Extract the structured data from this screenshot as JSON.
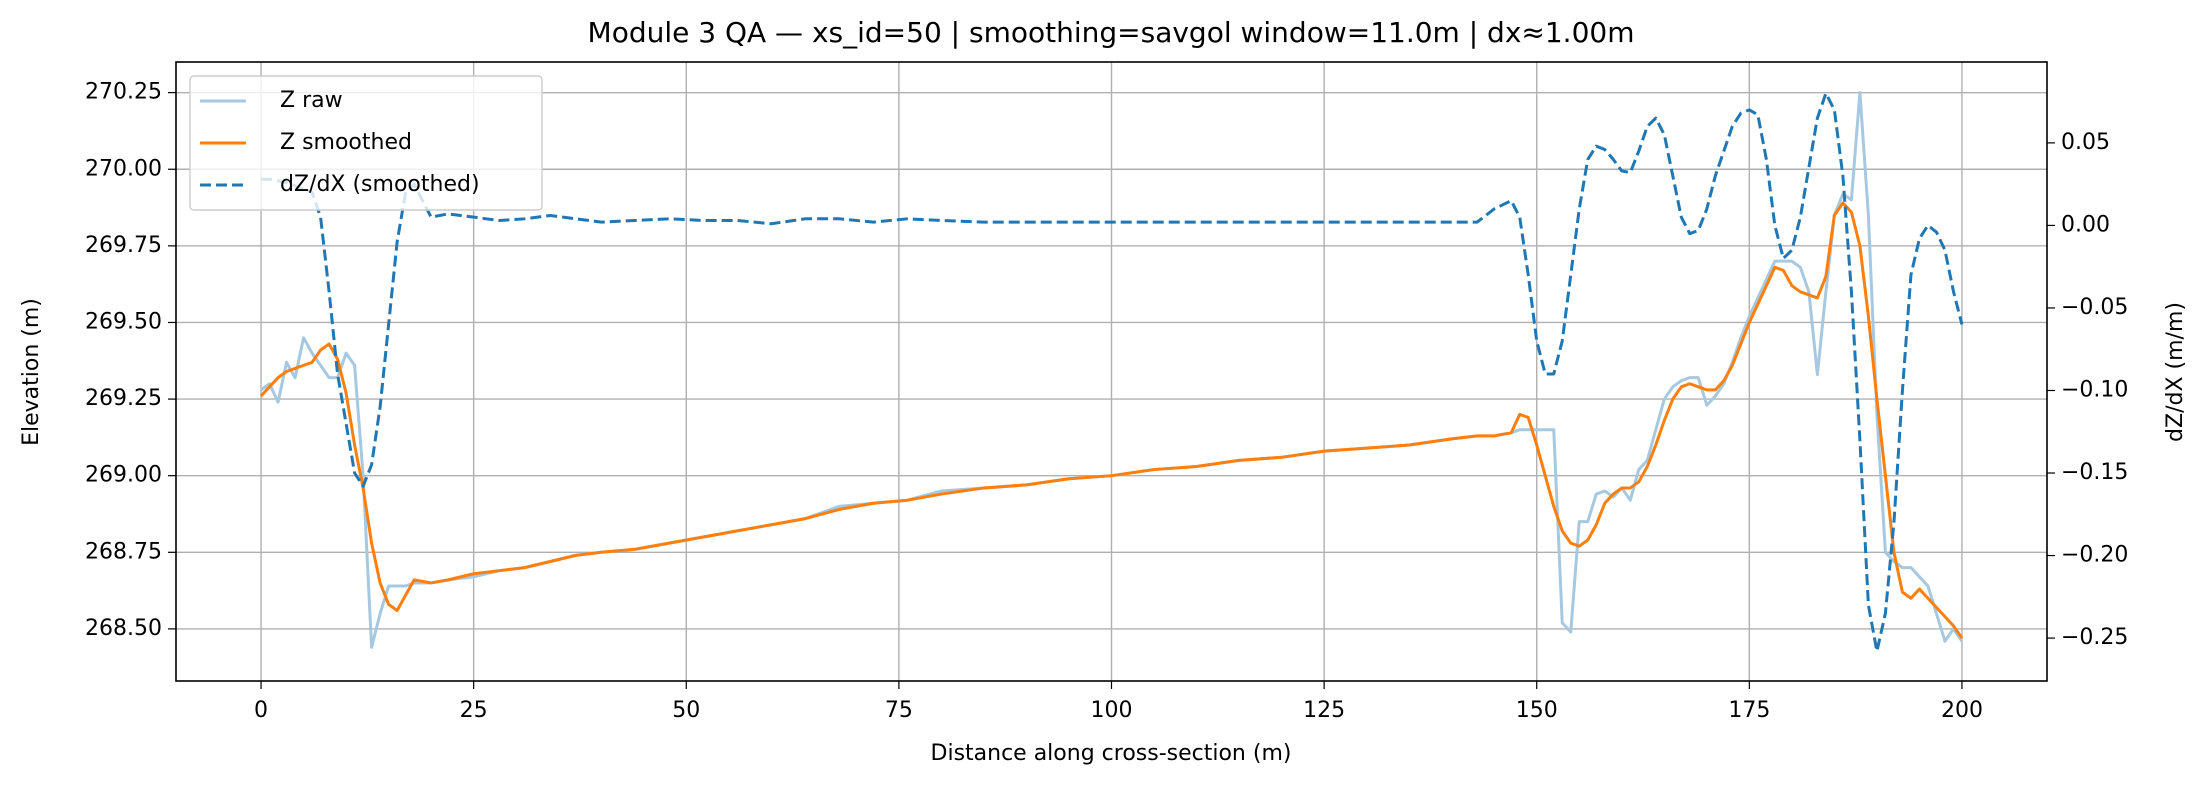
{
  "chart_data": {
    "type": "line",
    "title": "Module 3 QA — xs_id=50 | smoothing=savgol window=11.0m | dx≈1.00m",
    "x_label": "Distance along cross-section (m)",
    "y_label": "Elevation (m)",
    "y2_label": "dZ/dX (m/m)",
    "x": [
      0,
      1,
      2,
      3,
      4,
      5,
      6,
      7,
      8,
      9,
      10,
      11,
      12,
      13,
      14,
      15,
      16,
      17,
      18,
      20,
      22,
      25,
      28,
      31,
      34,
      37,
      40,
      44,
      48,
      52,
      56,
      60,
      64,
      68,
      72,
      76,
      80,
      85,
      90,
      95,
      100,
      105,
      110,
      115,
      120,
      125,
      130,
      135,
      140,
      143,
      145,
      147,
      148,
      149,
      150,
      151,
      152,
      153,
      154,
      155,
      156,
      157,
      158,
      159,
      160,
      161,
      162,
      163,
      164,
      165,
      166,
      167,
      168,
      169,
      170,
      171,
      172,
      173,
      174,
      175,
      176,
      177,
      178,
      179,
      180,
      181,
      182,
      183,
      184,
      185,
      186,
      187,
      188,
      189,
      190,
      191,
      192,
      193,
      194,
      195,
      196,
      197,
      198,
      199,
      200
    ],
    "series": [
      {
        "name": "Z raw",
        "color": "#a6c8e0",
        "axis": "y",
        "linestyle": "solid",
        "values": [
          269.28,
          269.3,
          269.24,
          269.37,
          269.32,
          269.45,
          269.4,
          269.36,
          269.32,
          269.32,
          269.4,
          269.36,
          269.0,
          268.44,
          268.55,
          268.64,
          268.64,
          268.64,
          268.65,
          268.65,
          268.66,
          268.67,
          268.69,
          268.7,
          268.72,
          268.74,
          268.75,
          268.76,
          268.78,
          268.8,
          268.82,
          268.84,
          268.86,
          268.9,
          268.91,
          268.92,
          268.95,
          268.96,
          268.97,
          268.99,
          269.0,
          269.02,
          269.03,
          269.05,
          269.06,
          269.08,
          269.09,
          269.1,
          269.12,
          269.13,
          269.13,
          269.14,
          269.15,
          269.15,
          269.15,
          269.15,
          269.15,
          268.52,
          268.49,
          268.85,
          268.85,
          268.94,
          268.95,
          268.93,
          268.96,
          268.92,
          269.02,
          269.05,
          269.15,
          269.25,
          269.29,
          269.31,
          269.32,
          269.32,
          269.23,
          269.26,
          269.3,
          269.37,
          269.45,
          269.52,
          269.58,
          269.64,
          269.7,
          269.7,
          269.7,
          269.68,
          269.6,
          269.33,
          269.6,
          269.85,
          269.92,
          269.9,
          270.25,
          269.85,
          269.2,
          268.75,
          268.72,
          268.7,
          268.7,
          268.67,
          268.64,
          268.55,
          268.46,
          268.5,
          268.46
        ]
      },
      {
        "name": "Z smoothed",
        "color": "#ff7f0e",
        "axis": "y",
        "linestyle": "solid",
        "values": [
          269.26,
          269.29,
          269.32,
          269.34,
          269.35,
          269.36,
          269.37,
          269.41,
          269.43,
          269.38,
          269.27,
          269.1,
          268.96,
          268.78,
          268.65,
          268.58,
          268.56,
          268.61,
          268.66,
          268.65,
          268.66,
          268.68,
          268.69,
          268.7,
          268.72,
          268.74,
          268.75,
          268.76,
          268.78,
          268.8,
          268.82,
          268.84,
          268.86,
          268.89,
          268.91,
          268.92,
          268.94,
          268.96,
          268.97,
          268.99,
          269.0,
          269.02,
          269.03,
          269.05,
          269.06,
          269.08,
          269.09,
          269.1,
          269.12,
          269.13,
          269.13,
          269.14,
          269.2,
          269.19,
          269.1,
          269.0,
          268.9,
          268.82,
          268.78,
          268.77,
          268.79,
          268.84,
          268.91,
          268.94,
          268.96,
          268.96,
          268.98,
          269.03,
          269.1,
          269.18,
          269.25,
          269.29,
          269.3,
          269.29,
          269.28,
          269.28,
          269.31,
          269.36,
          269.43,
          269.5,
          269.56,
          269.62,
          269.68,
          269.67,
          269.62,
          269.6,
          269.59,
          269.58,
          269.65,
          269.85,
          269.89,
          269.86,
          269.75,
          269.52,
          269.25,
          269.0,
          268.75,
          268.62,
          268.6,
          268.63,
          268.6,
          268.57,
          268.54,
          268.51,
          268.47
        ]
      },
      {
        "name": "dZ/dX (smoothed)",
        "color": "#1f77b4",
        "axis": "y2",
        "linestyle": "dashed",
        "values": [
          0.028,
          0.028,
          0.027,
          0.026,
          0.024,
          0.022,
          0.02,
          0.005,
          -0.04,
          -0.09,
          -0.12,
          -0.15,
          -0.158,
          -0.145,
          -0.11,
          -0.06,
          -0.01,
          0.02,
          0.025,
          0.005,
          0.007,
          0.005,
          0.003,
          0.004,
          0.006,
          0.004,
          0.002,
          0.003,
          0.004,
          0.003,
          0.003,
          0.001,
          0.004,
          0.004,
          0.002,
          0.004,
          0.003,
          0.002,
          0.002,
          0.002,
          0.002,
          0.002,
          0.002,
          0.002,
          0.002,
          0.002,
          0.002,
          0.002,
          0.002,
          0.002,
          0.01,
          0.015,
          0.005,
          -0.03,
          -0.07,
          -0.09,
          -0.09,
          -0.07,
          -0.03,
          0.01,
          0.04,
          0.048,
          0.046,
          0.04,
          0.033,
          0.032,
          0.045,
          0.06,
          0.065,
          0.055,
          0.03,
          0.005,
          -0.005,
          -0.003,
          0.01,
          0.03,
          0.045,
          0.06,
          0.068,
          0.07,
          0.067,
          0.04,
          0.0,
          -0.02,
          -0.015,
          0.005,
          0.035,
          0.065,
          0.08,
          0.07,
          0.03,
          -0.04,
          -0.13,
          -0.23,
          -0.258,
          -0.235,
          -0.18,
          -0.1,
          -0.03,
          -0.008,
          0.0,
          -0.004,
          -0.015,
          -0.04,
          -0.06
        ]
      }
    ],
    "xlim": [
      -10,
      210
    ],
    "xticks": [
      0,
      25,
      50,
      75,
      100,
      125,
      150,
      175,
      200
    ],
    "ylim": [
      268.33,
      270.35
    ],
    "yticks": [
      {
        "value": 268.5,
        "label": "268.50"
      },
      {
        "value": 268.75,
        "label": "268.75"
      },
      {
        "value": 269.0,
        "label": "269.00"
      },
      {
        "value": 269.25,
        "label": "269.25"
      },
      {
        "value": 269.5,
        "label": "269.50"
      },
      {
        "value": 269.75,
        "label": "269.75"
      },
      {
        "value": 270.0,
        "label": "270.00"
      },
      {
        "value": 270.25,
        "label": "270.25"
      }
    ],
    "y2lim": [
      -0.276,
      0.099
    ],
    "y2ticks": [
      {
        "value": -0.25,
        "label": "−0.25"
      },
      {
        "value": -0.2,
        "label": "−0.20"
      },
      {
        "value": -0.15,
        "label": "−0.15"
      },
      {
        "value": -0.1,
        "label": "−0.10"
      },
      {
        "value": -0.05,
        "label": "−0.05"
      },
      {
        "value": 0,
        "label": "0.00"
      },
      {
        "value": 0.05,
        "label": "0.05"
      }
    ],
    "grid": true,
    "legend": "upper-left"
  }
}
